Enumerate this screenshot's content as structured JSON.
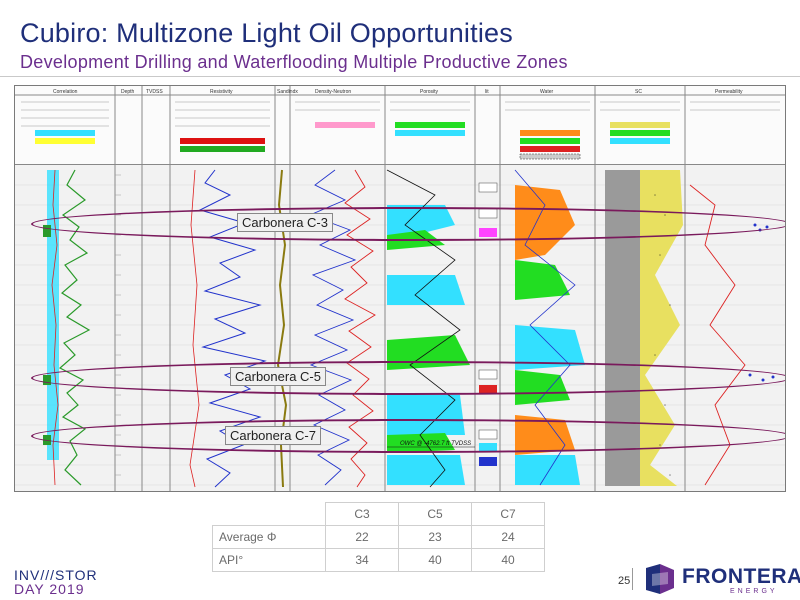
{
  "slide": {
    "title": "Cubiro: Multizone Light Oil Opportunities",
    "subtitle": "Development Drilling and Waterflooding Multiple Productive Zones"
  },
  "log_headers": [
    "Correlation",
    "Depth",
    "TVDSS",
    "Resistivity",
    "Sandindx",
    "Density-Neutron",
    "Porosity",
    "lit",
    "Water",
    "SC",
    "Permeability"
  ],
  "zones": [
    {
      "label": "Carbonera C-3"
    },
    {
      "label": "Carbonera C-5"
    },
    {
      "label": "Carbonera C-7"
    }
  ],
  "owc_text": "OWC @ -4762.7 ft TVDSS",
  "summary_table": {
    "columns": [
      "C3",
      "C5",
      "C7"
    ],
    "rows": [
      {
        "label": "Average Φ",
        "values": [
          "22",
          "23",
          "24"
        ]
      },
      {
        "label": "API°",
        "values": [
          "34",
          "40",
          "40"
        ]
      }
    ]
  },
  "footer": {
    "event_line1": "INV///STOR",
    "event_line2": "DAY 2019",
    "page_number": "25",
    "company": "FRONTERA",
    "company_sub": "ENERGY"
  },
  "colors": {
    "title": "#1f2f7a",
    "subtitle": "#6b2f8e",
    "ellipse": "#7a1a5c"
  }
}
